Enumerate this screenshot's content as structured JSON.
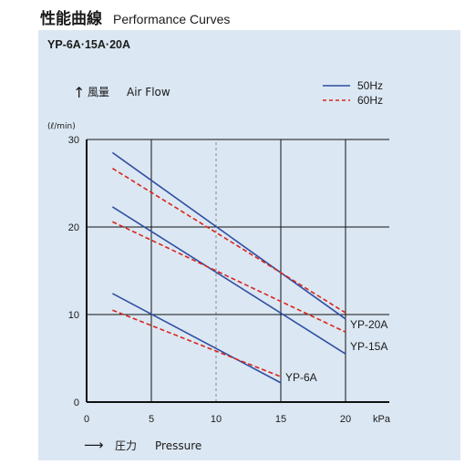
{
  "header": {
    "title_jp": "性能曲線",
    "title_en": "Performance Curves"
  },
  "panel": {
    "model_title": "YP-6A·15A·20A"
  },
  "chart_data": {
    "type": "line",
    "xlabel": "→ 圧力  Pressure",
    "xlabel_parts": {
      "arrow": "⟶",
      "jp": "圧力",
      "en": "Pressure"
    },
    "ylabel_parts": {
      "arrow": "↑",
      "jp": "風量",
      "en": "Air Flow",
      "unit": "(ℓ/min)"
    },
    "x_unit": "kPa",
    "xlim": [
      0,
      20
    ],
    "ylim": [
      0,
      30
    ],
    "x_ticks": [
      0,
      5,
      10,
      15,
      20
    ],
    "y_ticks": [
      0,
      10,
      20,
      30
    ],
    "grid": true,
    "dashed_reference_x": 10,
    "legend": {
      "placement": "top-right",
      "entries": [
        {
          "label": "50Hz",
          "style": "solid",
          "color": "#2f4fa2"
        },
        {
          "label": "60Hz",
          "style": "dashed",
          "color": "#d9261c"
        }
      ]
    },
    "series": [
      {
        "name": "YP-20A",
        "frequency": "50Hz",
        "x": [
          2,
          20
        ],
        "y": [
          28.5,
          9.5
        ]
      },
      {
        "name": "YP-20A",
        "frequency": "60Hz",
        "x": [
          2,
          20
        ],
        "y": [
          26.7,
          10.2
        ]
      },
      {
        "name": "YP-15A",
        "frequency": "50Hz",
        "x": [
          2,
          20
        ],
        "y": [
          22.3,
          5.5
        ]
      },
      {
        "name": "YP-15A",
        "frequency": "60Hz",
        "x": [
          2,
          20
        ],
        "y": [
          20.6,
          8.0
        ]
      },
      {
        "name": "YP-6A",
        "frequency": "50Hz",
        "x": [
          2,
          15
        ],
        "y": [
          12.4,
          2.2
        ]
      },
      {
        "name": "YP-6A",
        "frequency": "60Hz",
        "x": [
          2,
          15
        ],
        "y": [
          10.5,
          2.9
        ]
      }
    ],
    "series_labels": [
      "YP-20A",
      "YP-15A",
      "YP-6A"
    ]
  }
}
